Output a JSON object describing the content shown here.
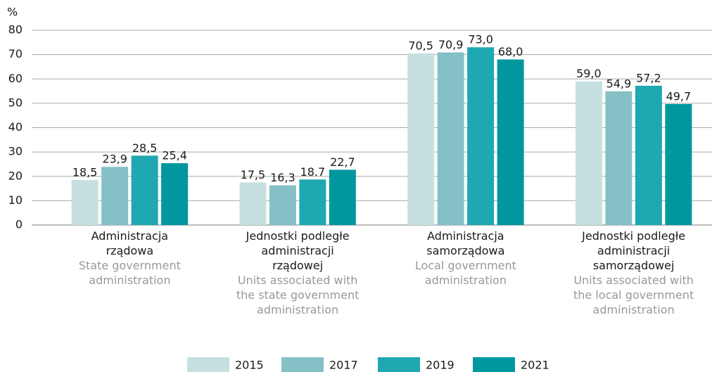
{
  "chart_data": {
    "type": "bar",
    "y_unit": "%",
    "categories": [
      "Administracja rządowa",
      "Jednostki podległe administracji rządowej",
      "Administracja samorządowa",
      "Jednostki podległe administracji samorządowej"
    ],
    "category_translations": [
      "State government administration",
      "Units associated with the state government administration",
      "Local government administration",
      "Units associated with the local government administration"
    ],
    "series": [
      {
        "name": "2015",
        "color": "#c6e0e2",
        "values": [
          18.5,
          17.5,
          70.5,
          59.0
        ],
        "value_labels": [
          "18,5",
          "17,5",
          "70,5",
          "59,0"
        ]
      },
      {
        "name": "2017",
        "color": "#86c0c7",
        "values": [
          23.9,
          16.3,
          70.9,
          54.9
        ],
        "value_labels": [
          "23,9",
          "16,3",
          "70,9",
          "54,9"
        ]
      },
      {
        "name": "2019",
        "color": "#1fa8b1",
        "values": [
          28.5,
          18.7,
          73.0,
          57.2
        ],
        "value_labels": [
          "28,5",
          "18.7",
          "73,0",
          "57,2"
        ]
      },
      {
        "name": "2021",
        "color": "#00979f",
        "values": [
          25.4,
          22.7,
          68.0,
          49.7
        ],
        "value_labels": [
          "25,4",
          "22,7",
          "68,0",
          "49,7"
        ]
      }
    ],
    "ylim": [
      0,
      80
    ],
    "yticks": [
      0,
      10,
      20,
      30,
      40,
      50,
      60,
      70,
      80
    ],
    "grid": true
  }
}
